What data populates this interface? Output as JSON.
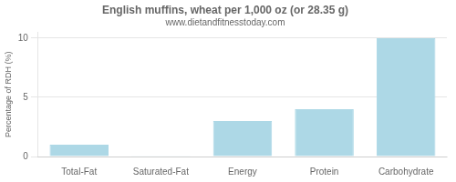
{
  "chart_data": {
    "type": "bar",
    "title": "English muffins, wheat per 1,000 oz (or 28.35 g)",
    "subtitle": "www.dietandfitnesstoday.com",
    "categories": [
      "Total-Fat",
      "Saturated-Fat",
      "Energy",
      "Protein",
      "Carbohydrate"
    ],
    "values": [
      1.0,
      0.05,
      3.0,
      4.0,
      10.0
    ],
    "color": "#add8e6",
    "ylabel": "Percentage of RDH (%)",
    "ylim": [
      0,
      10.5
    ],
    "yticks": [
      0,
      5,
      10
    ],
    "grid": true
  }
}
